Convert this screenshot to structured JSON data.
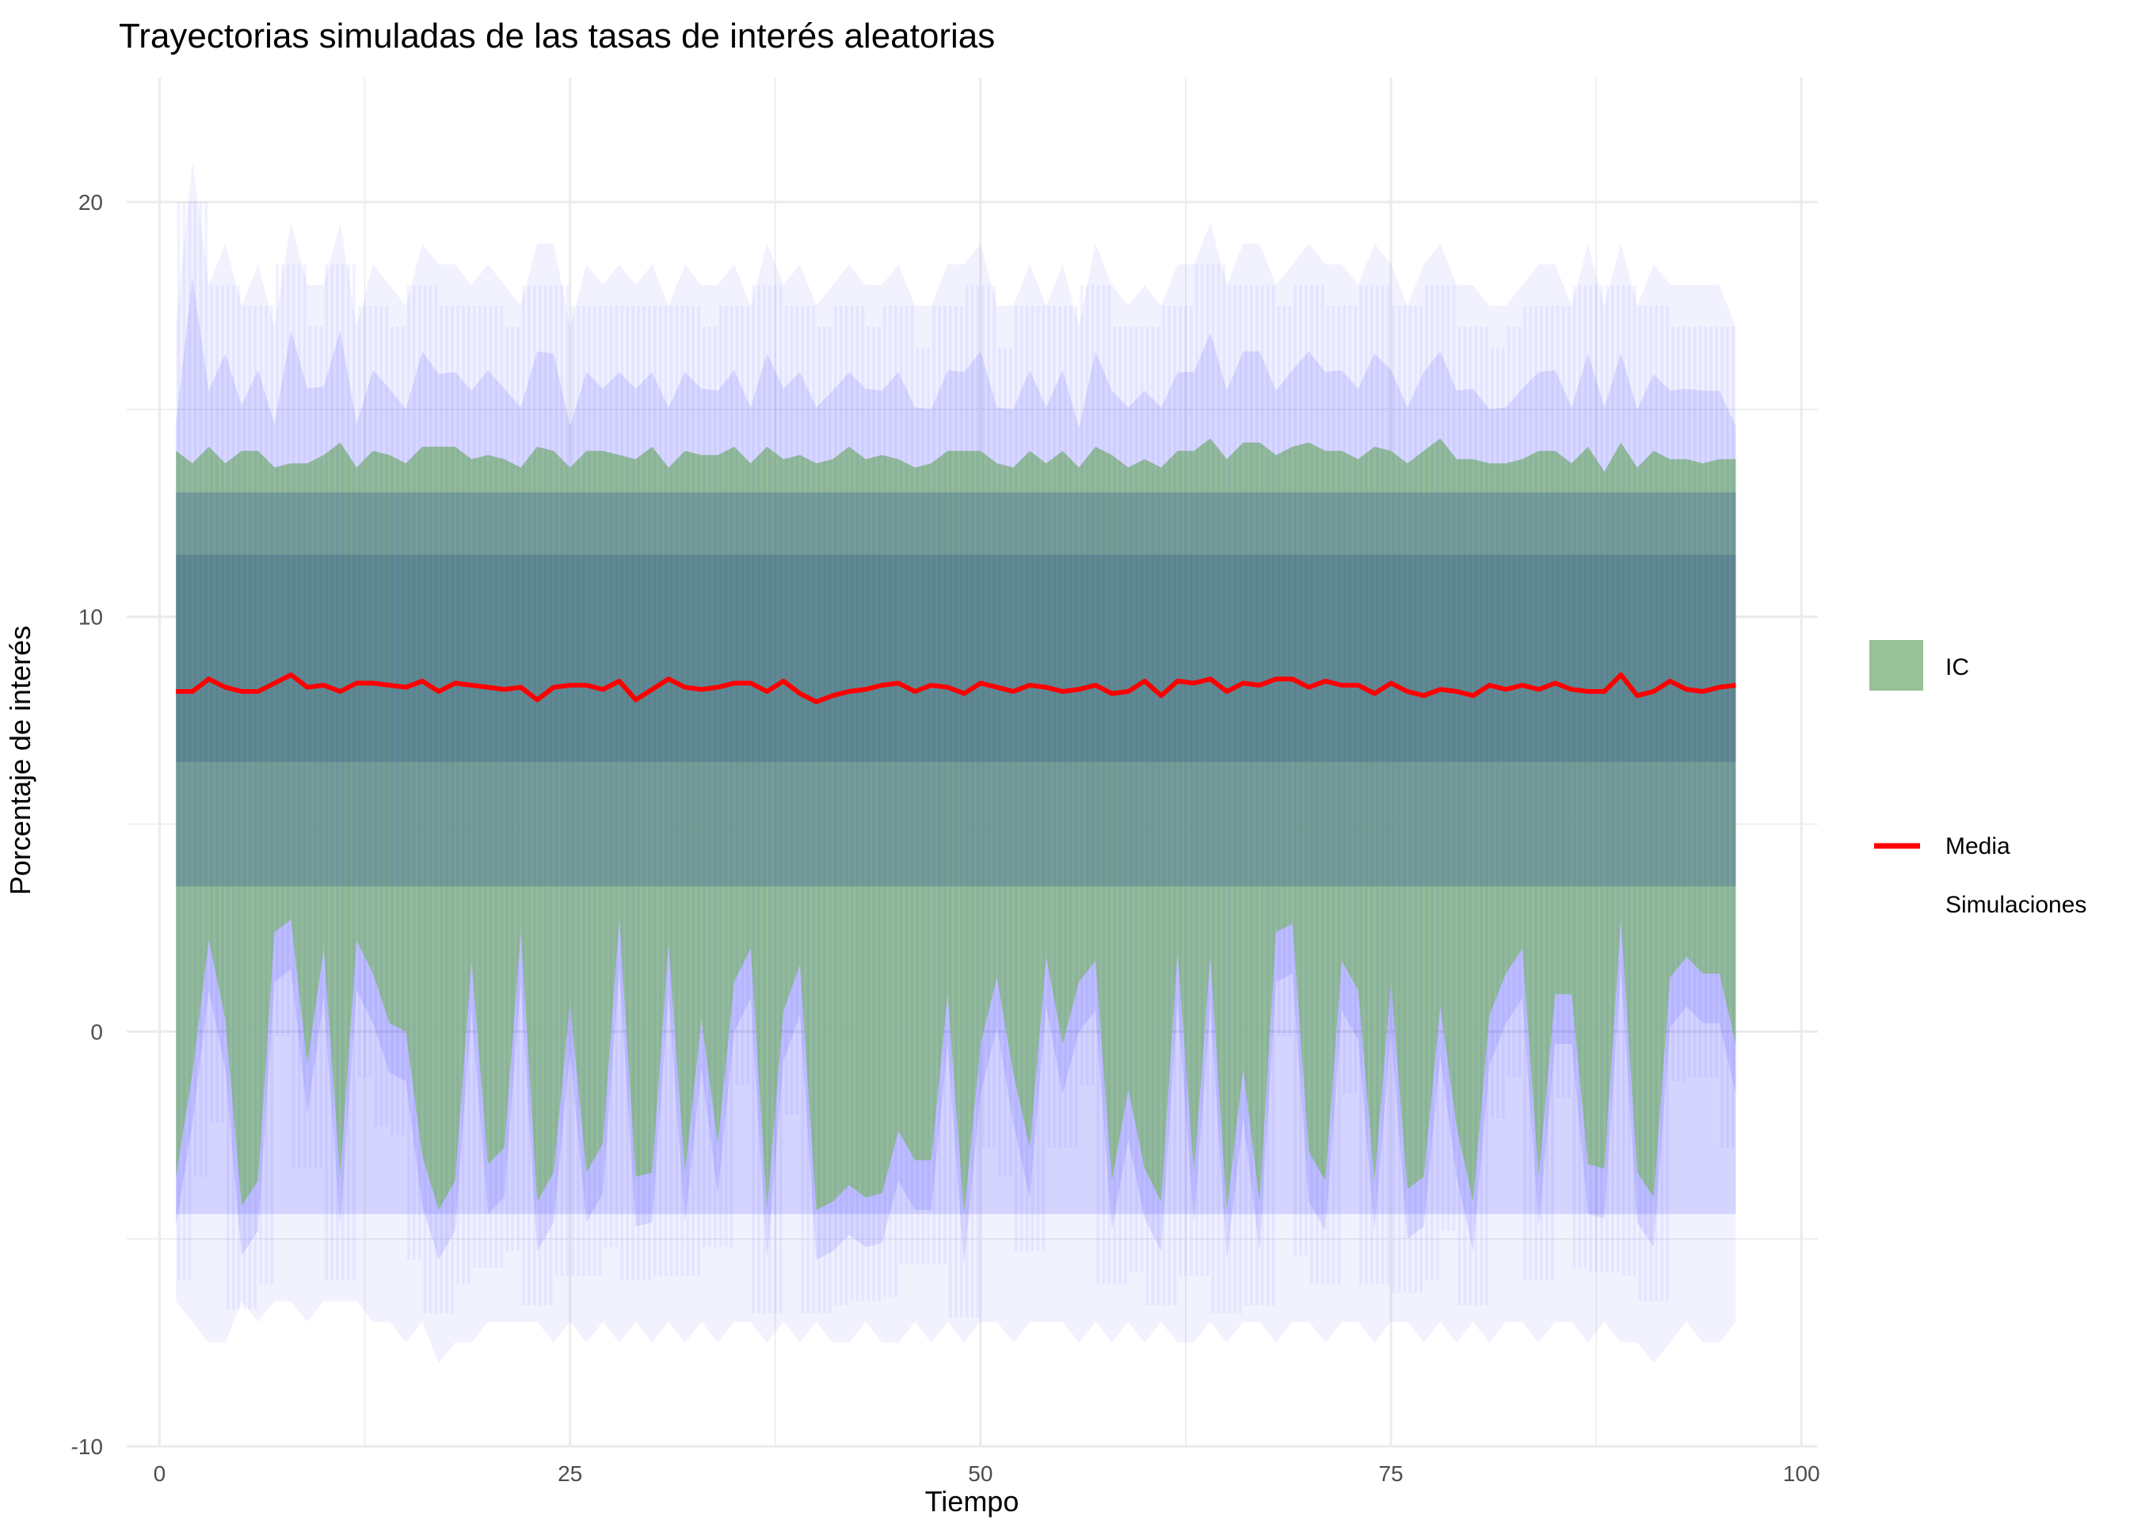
{
  "chart_data": {
    "type": "area",
    "title": "Trayectorias simuladas de las tasas de interés aleatorias",
    "xlabel": "Tiempo",
    "ylabel": "Porcentaje de interés",
    "xlim": [
      -2,
      101
    ],
    "ylim": [
      -10,
      23
    ],
    "x_ticks": [
      0,
      25,
      50,
      75,
      100
    ],
    "x_tick_labels": [
      "0",
      "25",
      "50",
      "75",
      "100"
    ],
    "y_ticks": [
      -10,
      0,
      10,
      20
    ],
    "y_tick_labels": [
      "-10",
      "0",
      "10",
      "20"
    ],
    "grid": true,
    "legend_position": "right",
    "x": [
      1,
      2,
      3,
      4,
      5,
      6,
      7,
      8,
      9,
      10,
      11,
      12,
      13,
      14,
      15,
      16,
      17,
      18,
      19,
      20,
      21,
      22,
      23,
      24,
      25,
      26,
      27,
      28,
      29,
      30,
      31,
      32,
      33,
      34,
      35,
      36,
      37,
      38,
      39,
      40,
      41,
      42,
      43,
      44,
      45,
      46,
      47,
      48,
      49,
      50,
      51,
      52,
      53,
      54,
      55,
      56,
      57,
      58,
      59,
      60,
      61,
      62,
      63,
      64,
      65,
      66,
      67,
      68,
      69,
      70,
      71,
      72,
      73,
      74,
      75,
      76,
      77,
      78,
      79,
      80,
      81,
      82,
      83,
      84,
      85,
      86,
      87,
      88,
      89,
      90,
      91,
      92,
      93,
      94,
      95,
      96
    ],
    "series": [
      {
        "name": "IC",
        "kind": "ribbon",
        "color": "#8fbc8f",
        "upper": [
          14.0,
          13.7,
          14.1,
          13.7,
          14.0,
          14.0,
          13.6,
          13.7,
          13.7,
          13.9,
          14.2,
          13.6,
          14.0,
          13.9,
          13.7,
          14.1,
          14.1,
          14.1,
          13.8,
          13.9,
          13.8,
          13.6,
          14.1,
          14.0,
          13.6,
          14.0,
          14.0,
          13.9,
          13.8,
          14.1,
          13.6,
          14.0,
          13.9,
          13.9,
          14.1,
          13.7,
          14.1,
          13.8,
          13.9,
          13.7,
          13.8,
          14.1,
          13.8,
          13.9,
          13.8,
          13.6,
          13.7,
          14.0,
          14.0,
          14.0,
          13.7,
          13.6,
          14.0,
          13.7,
          14.0,
          13.6,
          14.1,
          13.9,
          13.6,
          13.8,
          13.6,
          14.0,
          14.0,
          14.3,
          13.8,
          14.2,
          14.2,
          13.9,
          14.1,
          14.2,
          14.0,
          14.0,
          13.8,
          14.1,
          14.0,
          13.7,
          14.0,
          14.3,
          13.8,
          13.8,
          13.7,
          13.7,
          13.8,
          14.0,
          14.0,
          13.7,
          14.1,
          13.5,
          14.2,
          13.6,
          14.0,
          13.8,
          13.8,
          13.7,
          13.8,
          13.8
        ],
        "lower": [
          -3.5,
          -1.0,
          2.2,
          0.3,
          -4.2,
          -3.6,
          2.4,
          2.7,
          -0.8,
          2.0,
          -3.5,
          2.2,
          1.4,
          0.2,
          0.0,
          -3.0,
          -4.3,
          -3.6,
          1.7,
          -3.2,
          -2.8,
          2.4,
          -4.1,
          -3.4,
          0.7,
          -3.4,
          -2.7,
          2.7,
          -3.5,
          -3.4,
          2.1,
          -3.4,
          0.3,
          -2.7,
          1.2,
          2.0,
          -4.3,
          0.5,
          1.6,
          -4.3,
          -4.1,
          -3.7,
          -4.0,
          -3.9,
          -2.4,
          -3.1,
          -3.1,
          0.9,
          -4.4,
          -0.3,
          1.3,
          -1.0,
          -2.8,
          1.8,
          -0.3,
          1.2,
          1.7,
          -3.6,
          -1.4,
          -3.3,
          -4.1,
          1.9,
          -3.4,
          1.8,
          -4.3,
          -0.9,
          -4.1,
          2.4,
          2.6,
          -2.9,
          -3.6,
          1.7,
          1.0,
          -3.6,
          1.2,
          -3.8,
          -3.5,
          0.6,
          -2.3,
          -4.1,
          0.4,
          1.4,
          2.0,
          -3.5,
          0.9,
          0.9,
          -3.2,
          -3.3,
          2.7,
          -3.4,
          -4.0,
          1.3,
          1.8,
          1.4,
          1.4,
          -0.3
        ]
      },
      {
        "name": "Media",
        "kind": "line",
        "color": "#ff0000",
        "values": [
          8.2,
          8.2,
          8.5,
          8.3,
          8.2,
          8.2,
          8.4,
          8.6,
          8.3,
          8.35,
          8.2,
          8.4,
          8.4,
          8.35,
          8.3,
          8.45,
          8.2,
          8.4,
          8.35,
          8.3,
          8.25,
          8.3,
          8.0,
          8.3,
          8.35,
          8.35,
          8.25,
          8.45,
          8.0,
          8.25,
          8.5,
          8.3,
          8.25,
          8.3,
          8.4,
          8.4,
          8.2,
          8.45,
          8.15,
          7.95,
          8.1,
          8.2,
          8.25,
          8.35,
          8.4,
          8.2,
          8.35,
          8.3,
          8.15,
          8.4,
          8.3,
          8.2,
          8.35,
          8.3,
          8.2,
          8.25,
          8.35,
          8.15,
          8.2,
          8.45,
          8.1,
          8.45,
          8.4,
          8.5,
          8.2,
          8.4,
          8.35,
          8.5,
          8.5,
          8.3,
          8.45,
          8.35,
          8.35,
          8.15,
          8.4,
          8.2,
          8.1,
          8.25,
          8.2,
          8.1,
          8.35,
          8.25,
          8.35,
          8.25,
          8.4,
          8.25,
          8.2,
          8.2,
          8.6,
          8.1,
          8.2,
          8.45,
          8.25,
          8.2,
          8.3,
          8.35
        ]
      },
      {
        "name": "Simulaciones",
        "kind": "lines",
        "color": "#0000ff",
        "band_upper": [
          17.0,
          21.0,
          18.0,
          19.0,
          17.5,
          18.5,
          17.0,
          19.5,
          18.0,
          18.0,
          19.5,
          17.0,
          18.5,
          18.0,
          17.5,
          19.0,
          18.5,
          18.5,
          18.0,
          18.5,
          18.0,
          17.5,
          19.0,
          19.0,
          17.0,
          18.5,
          18.0,
          18.5,
          18.0,
          18.5,
          17.5,
          18.5,
          18.0,
          18.0,
          18.5,
          17.5,
          19.0,
          18.0,
          18.5,
          17.5,
          18.0,
          18.5,
          18.0,
          18.0,
          18.5,
          17.5,
          17.5,
          18.5,
          18.5,
          19.0,
          17.5,
          17.5,
          18.5,
          17.5,
          18.5,
          17.0,
          19.0,
          18.0,
          17.5,
          18.0,
          17.5,
          18.5,
          18.5,
          19.5,
          18.0,
          19.0,
          19.0,
          18.0,
          18.5,
          19.0,
          18.5,
          18.5,
          18.0,
          19.0,
          18.5,
          17.5,
          18.5,
          19.0,
          18.0,
          18.0,
          17.5,
          17.5,
          18.0,
          18.5,
          18.5,
          17.5,
          19.0,
          17.5,
          19.0,
          17.5,
          18.5,
          18.0,
          18.0,
          18.0,
          18.0,
          17.0
        ],
        "band_lower": [
          -6.5,
          -7.0,
          -7.5,
          -7.5,
          -6.5,
          -7.0,
          -6.5,
          -6.5,
          -7.0,
          -6.5,
          -6.5,
          -6.5,
          -7.0,
          -7.0,
          -7.5,
          -7.0,
          -8.0,
          -7.5,
          -7.5,
          -7.0,
          -7.0,
          -7.0,
          -7.0,
          -7.5,
          -7.0,
          -7.5,
          -7.0,
          -7.5,
          -7.0,
          -7.5,
          -7.0,
          -7.5,
          -7.0,
          -7.5,
          -7.0,
          -7.0,
          -7.5,
          -7.0,
          -7.5,
          -7.0,
          -7.5,
          -7.5,
          -7.0,
          -7.5,
          -7.5,
          -7.0,
          -7.5,
          -7.0,
          -7.5,
          -7.0,
          -7.0,
          -7.5,
          -7.0,
          -7.0,
          -7.0,
          -7.5,
          -7.0,
          -7.5,
          -7.0,
          -7.5,
          -7.0,
          -7.5,
          -7.5,
          -7.0,
          -7.5,
          -7.0,
          -7.0,
          -7.5,
          -7.0,
          -7.0,
          -7.5,
          -7.0,
          -7.0,
          -7.5,
          -7.0,
          -7.0,
          -7.5,
          -7.0,
          -7.5,
          -7.0,
          -7.5,
          -7.0,
          -7.0,
          -7.5,
          -7.0,
          -7.0,
          -7.5,
          -7.0,
          -7.5,
          -7.5,
          -8.0,
          -7.5,
          -7.0,
          -7.5,
          -7.5,
          -7.0
        ]
      }
    ],
    "legend": [
      "IC",
      "Media",
      "Simulaciones"
    ]
  }
}
